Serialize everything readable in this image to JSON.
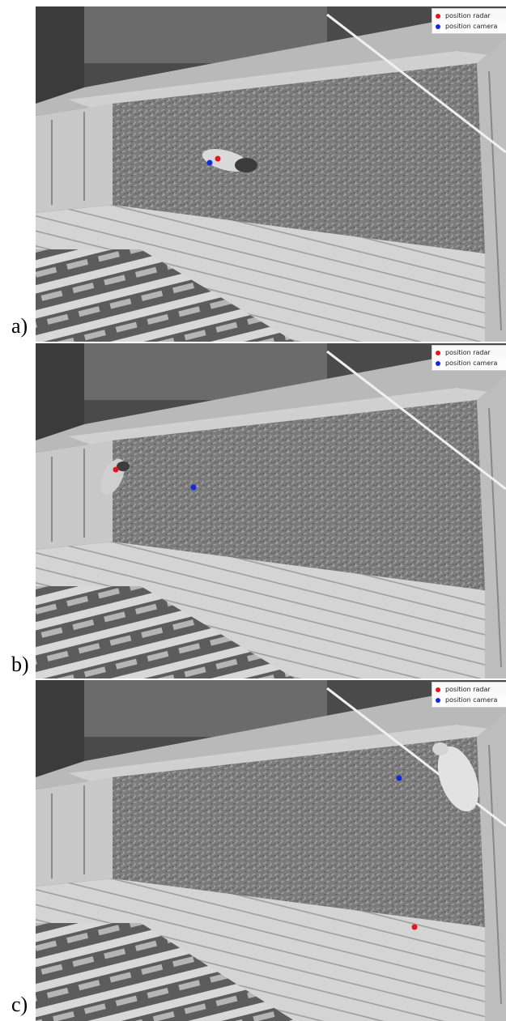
{
  "colors": {
    "radar": "#e8141c",
    "camera": "#1428e0"
  },
  "legend": {
    "radar_label": "position radar",
    "camera_label": "position camera"
  },
  "panels": [
    {
      "letter": "a)",
      "radar": [
        0.388,
        0.453
      ],
      "camera": [
        0.37,
        0.466
      ]
    },
    {
      "letter": "b)",
      "radar": [
        0.171,
        0.378
      ],
      "camera": [
        0.336,
        0.43
      ]
    },
    {
      "letter": "c)",
      "radar": [
        0.806,
        0.724
      ],
      "camera": [
        0.772,
        0.288
      ]
    }
  ]
}
